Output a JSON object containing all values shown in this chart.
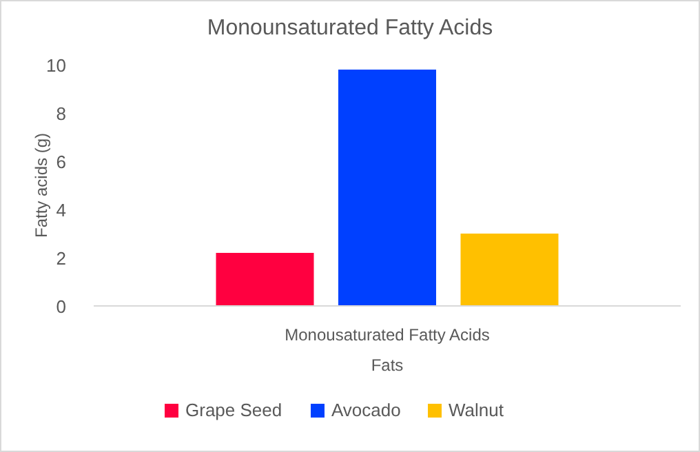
{
  "chart_data": {
    "type": "bar",
    "title": "Monounsaturated Fatty Acids",
    "xlabel": "Fats",
    "ylabel": "Fatty acids (g)",
    "categories": [
      "Monousaturated Fatty Acids"
    ],
    "series": [
      {
        "name": "Grape Seed",
        "color": "#ff0040",
        "values": [
          2.2
        ]
      },
      {
        "name": "Avocado",
        "color": "#0040ff",
        "values": [
          9.8
        ]
      },
      {
        "name": "Walnut",
        "color": "#ffc000",
        "values": [
          3.0
        ]
      }
    ],
    "ylim": [
      0,
      10
    ],
    "yticks": [
      0,
      2,
      4,
      6,
      8,
      10
    ],
    "grid": false,
    "legend": "bottom"
  }
}
